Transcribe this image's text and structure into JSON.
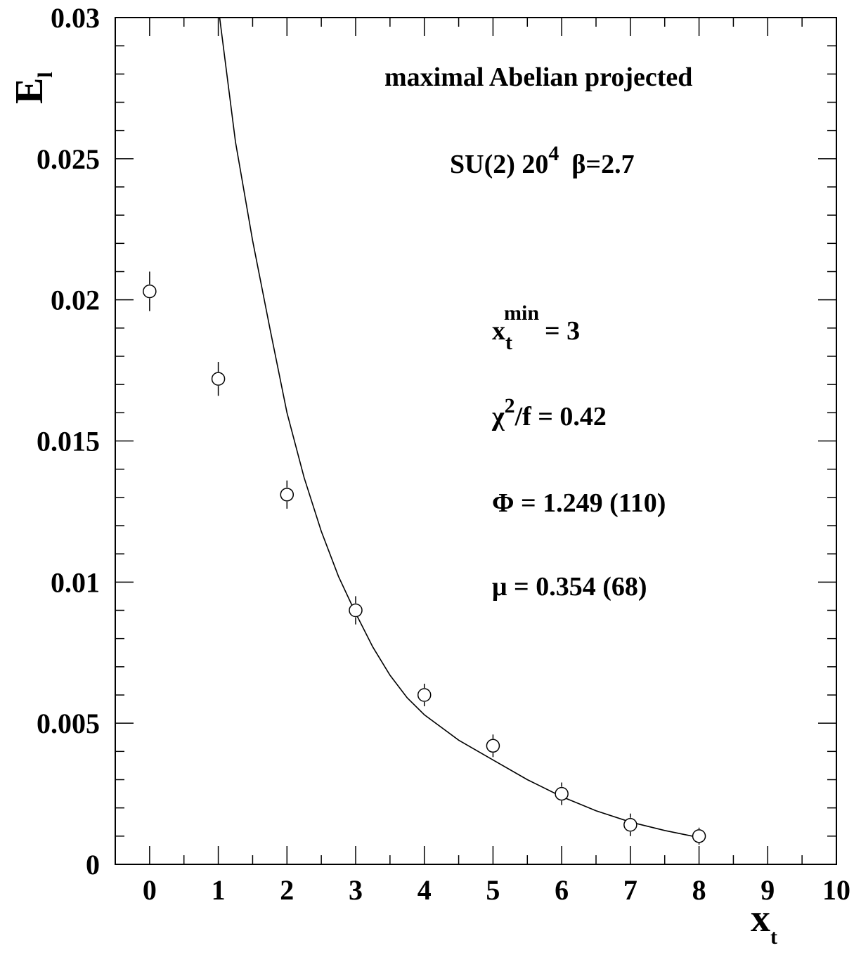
{
  "chart_data": {
    "type": "scatter",
    "xlim": [
      -0.5,
      10
    ],
    "ylim": [
      0,
      0.03
    ],
    "x_ticks": [
      {
        "value": 0,
        "label": "0"
      },
      {
        "value": 1,
        "label": "1"
      },
      {
        "value": 2,
        "label": "2"
      },
      {
        "value": 3,
        "label": "3"
      },
      {
        "value": 4,
        "label": "4"
      },
      {
        "value": 5,
        "label": "5"
      },
      {
        "value": 6,
        "label": "6"
      },
      {
        "value": 7,
        "label": "7"
      },
      {
        "value": 8,
        "label": "8"
      },
      {
        "value": 9,
        "label": "9"
      },
      {
        "value": 10,
        "label": "10"
      }
    ],
    "y_ticks": [
      {
        "value": 0,
        "label": "0"
      },
      {
        "value": 0.005,
        "label": "0.005"
      },
      {
        "value": 0.01,
        "label": "0.01"
      },
      {
        "value": 0.015,
        "label": "0.015"
      },
      {
        "value": 0.02,
        "label": "0.02"
      },
      {
        "value": 0.025,
        "label": "0.025"
      },
      {
        "value": 0.03,
        "label": "0.03"
      }
    ],
    "xlabel": {
      "main": "x",
      "sub": "t"
    },
    "ylabel": {
      "main": "E",
      "sub": "l"
    },
    "grid": false,
    "points": [
      {
        "x": 0,
        "y": 0.0203,
        "err": 0.0007
      },
      {
        "x": 1,
        "y": 0.0172,
        "err": 0.0006
      },
      {
        "x": 2,
        "y": 0.0131,
        "err": 0.0005
      },
      {
        "x": 3,
        "y": 0.009,
        "err": 0.0005
      },
      {
        "x": 4,
        "y": 0.006,
        "err": 0.0004
      },
      {
        "x": 5,
        "y": 0.0042,
        "err": 0.0004
      },
      {
        "x": 6,
        "y": 0.0025,
        "err": 0.0004
      },
      {
        "x": 7,
        "y": 0.0014,
        "err": 0.0004
      },
      {
        "x": 8,
        "y": 0.001,
        "err": 0.0003
      }
    ],
    "fit_curve": {
      "x": [
        1.02,
        1.25,
        1.5,
        1.75,
        2.0,
        2.25,
        2.5,
        2.75,
        3.0,
        3.25,
        3.5,
        3.75,
        4.0,
        4.5,
        5.0,
        5.5,
        6.0,
        6.5,
        7.0,
        7.5,
        8.0
      ],
      "y": [
        0.03,
        0.0256,
        0.0221,
        0.019,
        0.016,
        0.0137,
        0.0118,
        0.0102,
        0.0089,
        0.0077,
        0.0067,
        0.0059,
        0.0053,
        0.0044,
        0.0037,
        0.003,
        0.0024,
        0.0019,
        0.0015,
        0.0012,
        0.00095
      ]
    },
    "annotations": {
      "title": "maximal Abelian projected",
      "lattice": {
        "prefix": "SU(2) 20",
        "sup": "4",
        "beta": "β=2.7"
      },
      "xtmin": {
        "x": "x",
        "sub": "t",
        "sup": "min",
        "rest": "= 3"
      },
      "chi2": {
        "chi": "χ",
        "sup": "2",
        "rest": "/f =  0.42"
      },
      "phi": "Φ  = 1.249 (110)",
      "mu": "μ = 0.354  (68)"
    }
  }
}
